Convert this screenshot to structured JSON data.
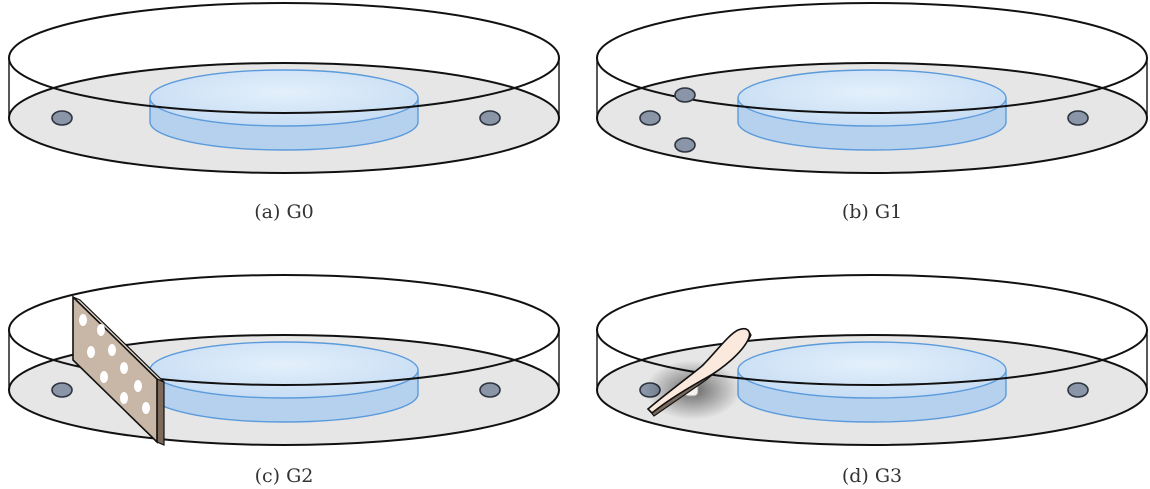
{
  "panels": [
    {
      "caption": "(a) G0"
    },
    {
      "caption": "(b) G1"
    },
    {
      "caption": "(c) G2"
    },
    {
      "caption": "(d) G3"
    }
  ],
  "colors": {
    "floor": "#e6e6e6",
    "outline": "#111111",
    "pool_fill": "#cfe3f7",
    "pool_stroke": "#5b9bdc",
    "pool_side": "#b6d1ee",
    "marker_fill": "#8a96a8",
    "marker_stroke": "#2e3440",
    "panel_fill": "#c8b6a6",
    "panel_hole": "#ffffff",
    "paddle_fill": "#fbe9de"
  },
  "icons": {
    "marker": "circle-marker-icon",
    "perforated-panel": "perforated-panel-icon",
    "paddle": "paddle-icon"
  }
}
